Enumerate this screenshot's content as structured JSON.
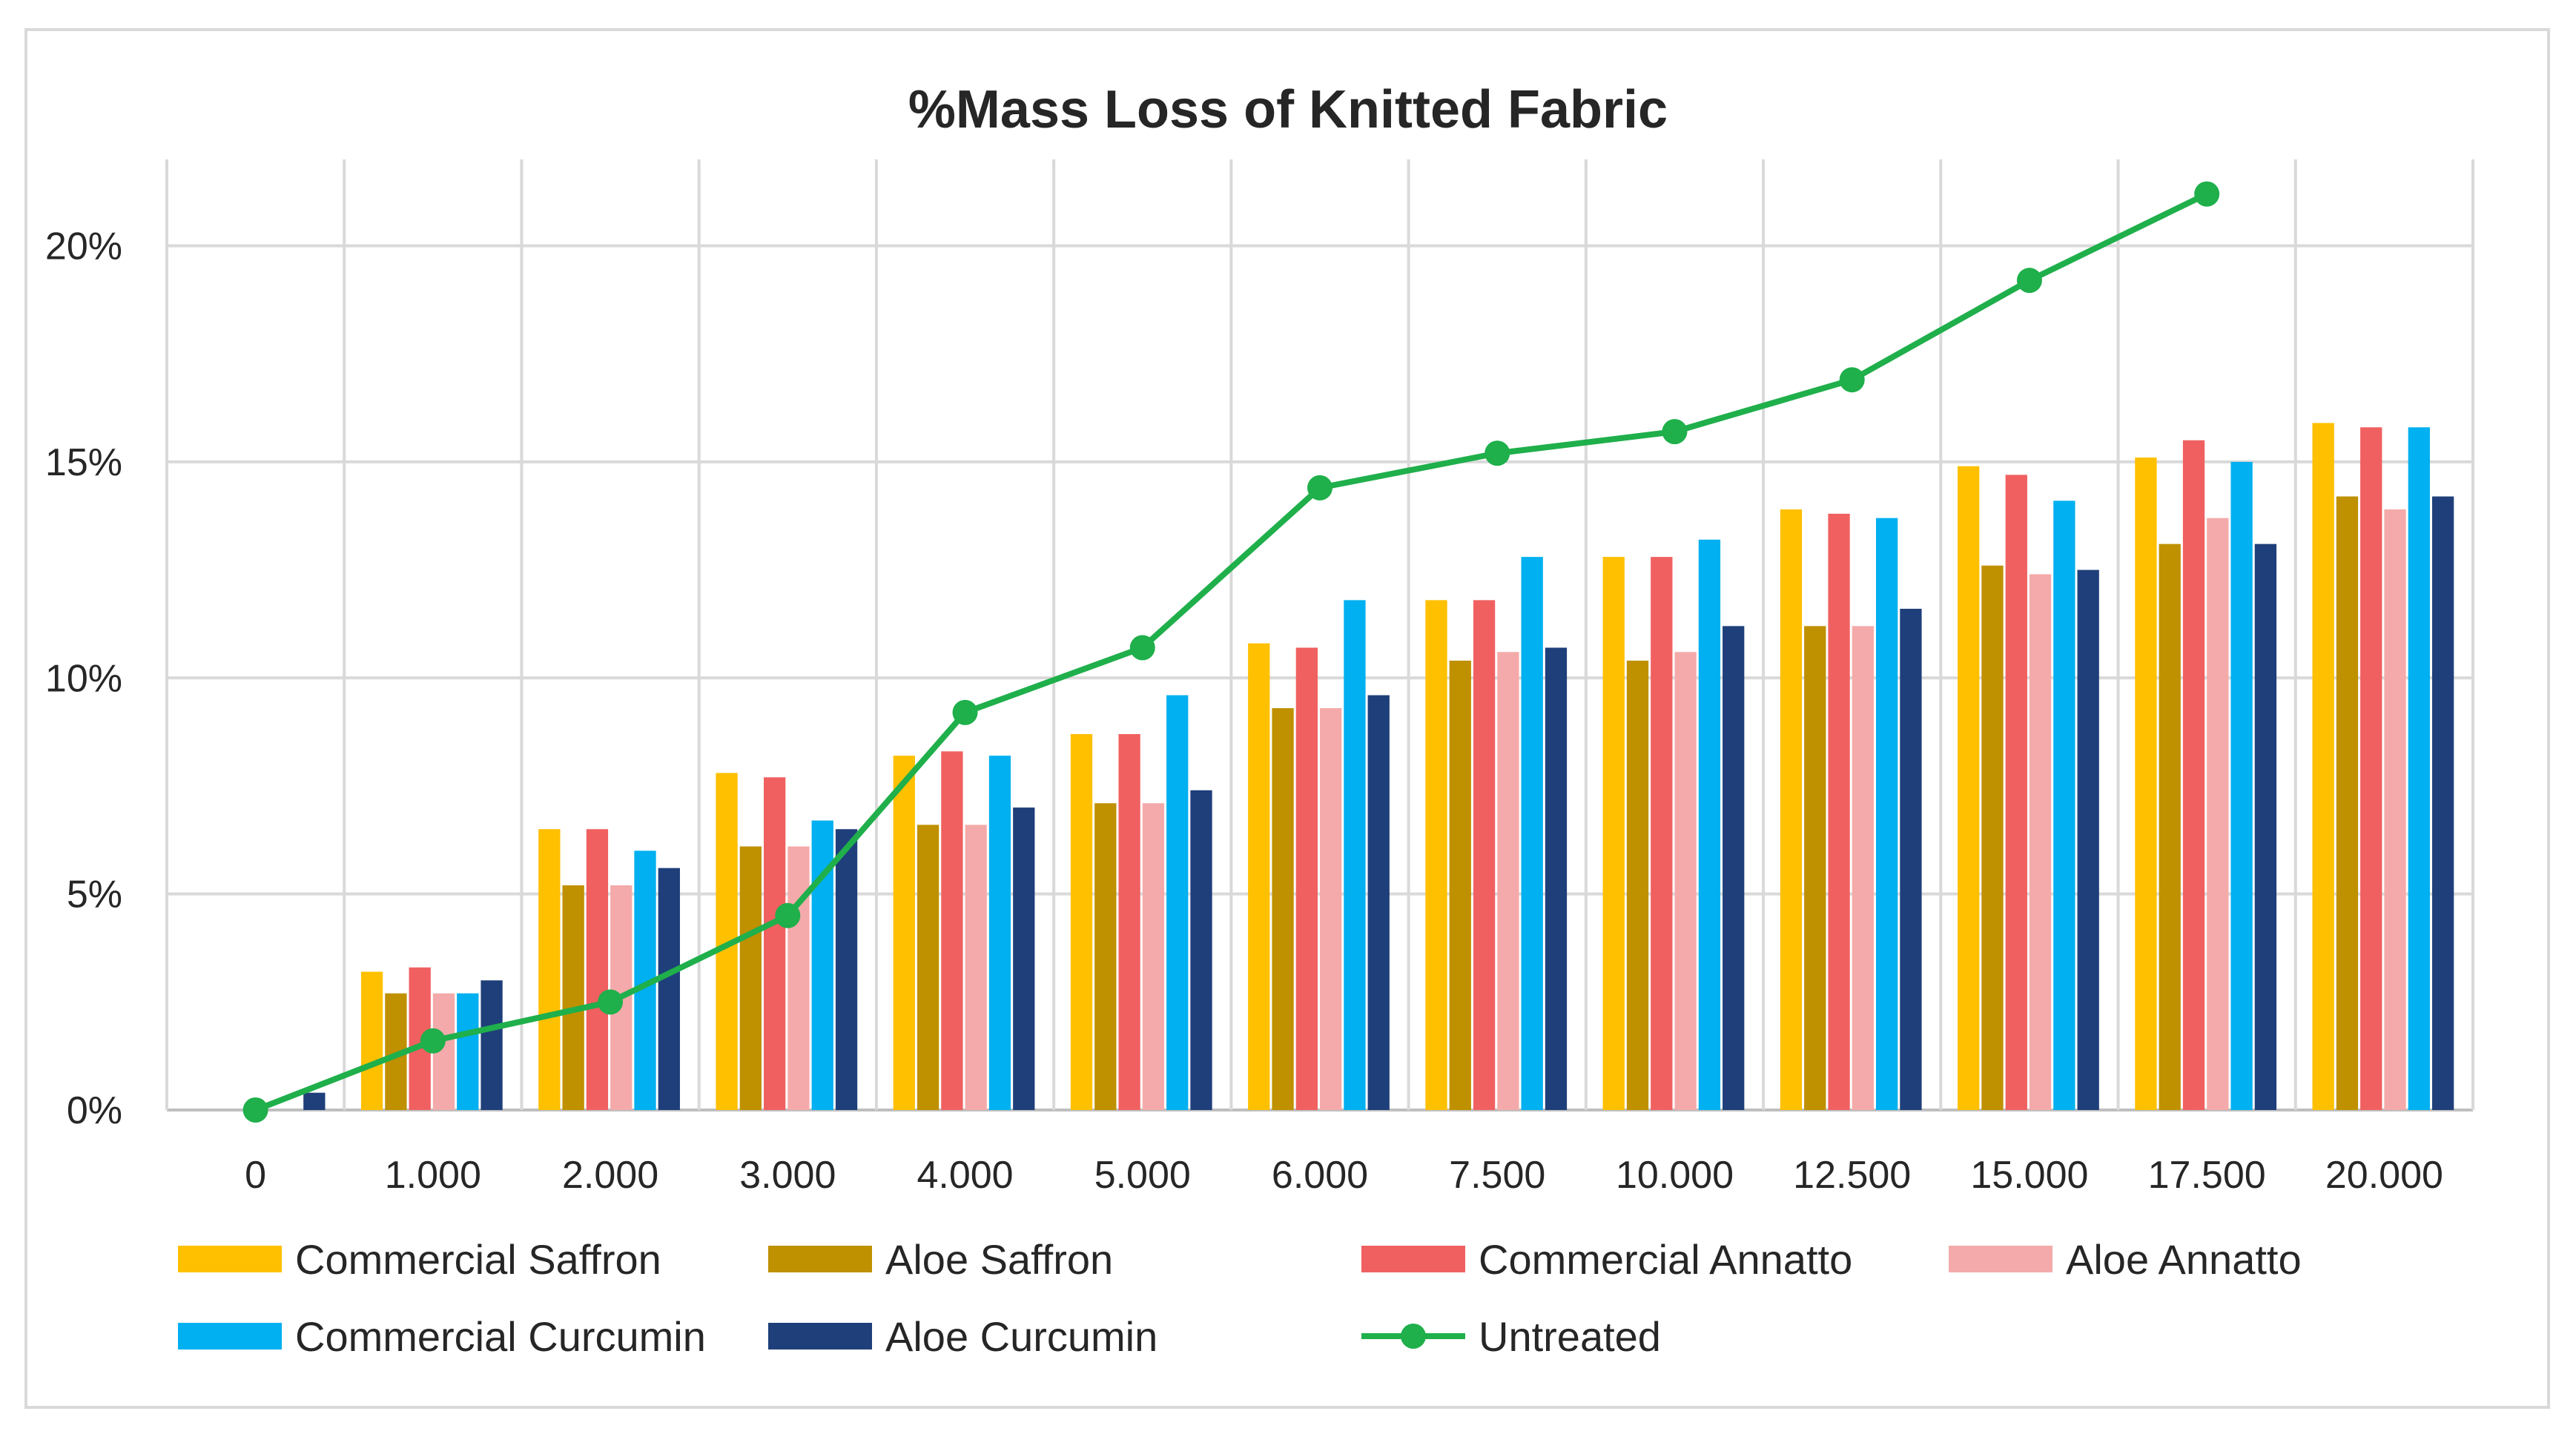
{
  "chart_data": {
    "type": "bar",
    "title": "%Mass Loss of Knitted Fabric",
    "xlabel": "",
    "ylabel": "",
    "categories": [
      "0",
      "1.000",
      "2.000",
      "3.000",
      "4.000",
      "5.000",
      "6.000",
      "7.500",
      "10.000",
      "12.500",
      "15.000",
      "17.500",
      "20.000"
    ],
    "y_ticks": [
      "0%",
      "5%",
      "10%",
      "15%",
      "20%"
    ],
    "ylim": [
      0,
      0.22
    ],
    "grid": true,
    "legend_position": "bottom",
    "series": [
      {
        "name": "Commercial Saffron",
        "type": "bar",
        "color": "#FFC000",
        "values": [
          0,
          0.032,
          0.065,
          0.078,
          0.082,
          0.087,
          0.108,
          0.118,
          0.128,
          0.139,
          0.149,
          0.151,
          0.159
        ]
      },
      {
        "name": "Aloe Saffron",
        "type": "bar",
        "color": "#BF9000",
        "values": [
          0,
          0.027,
          0.052,
          0.061,
          0.066,
          0.071,
          0.093,
          0.104,
          0.104,
          0.112,
          0.126,
          0.131,
          0.142
        ]
      },
      {
        "name": "Commercial Annatto",
        "type": "bar",
        "color": "#F06060",
        "values": [
          0,
          0.033,
          0.065,
          0.077,
          0.083,
          0.087,
          0.107,
          0.118,
          0.128,
          0.138,
          0.147,
          0.155,
          0.158
        ]
      },
      {
        "name": "Aloe Annatto",
        "type": "bar",
        "color": "#F4AAAA",
        "values": [
          0,
          0.027,
          0.052,
          0.061,
          0.066,
          0.071,
          0.093,
          0.106,
          0.106,
          0.112,
          0.124,
          0.137,
          0.139
        ]
      },
      {
        "name": "Commercial Curcumin",
        "type": "bar",
        "color": "#00B0F0",
        "values": [
          0,
          0.027,
          0.06,
          0.067,
          0.082,
          0.096,
          0.118,
          0.128,
          0.132,
          0.137,
          0.141,
          0.15,
          0.158
        ]
      },
      {
        "name": "Aloe Curcumin",
        "type": "bar",
        "color": "#1F3F7A",
        "values": [
          0.004,
          0.03,
          0.056,
          0.065,
          0.07,
          0.074,
          0.096,
          0.107,
          0.112,
          0.116,
          0.125,
          0.131,
          0.142
        ]
      },
      {
        "name": "Untreated",
        "type": "line",
        "color": "#1FAF4B",
        "values": [
          0,
          0.016,
          0.025,
          0.045,
          0.092,
          0.107,
          0.144,
          0.152,
          0.157,
          0.169,
          0.192,
          0.212,
          null
        ]
      }
    ]
  }
}
